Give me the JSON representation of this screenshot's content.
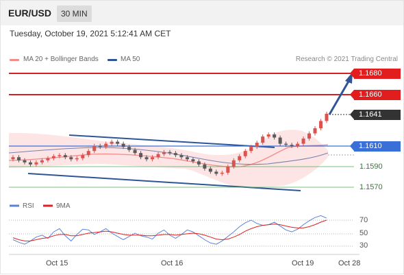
{
  "header": {
    "symbol": "EUR/USD",
    "timeframe": "30 MIN"
  },
  "datetime": "Tuesday, October 19, 2021 5:12:41 AM CET",
  "legend": {
    "ma20_label": "MA 20 + Bollinger Bands",
    "ma50_label": "MA 50",
    "source": "Research © 2021 Trading Central"
  },
  "levels": {
    "resistance2": "1.1680",
    "resistance1": "1.1660",
    "current": "1.1641",
    "pivot": "1.1610",
    "support1": "1.1590",
    "support2": "1.1570"
  },
  "rsi_legend": {
    "rsi_label": "RSI",
    "ma_label": "9MA"
  },
  "rsi_ticks": [
    "70",
    "50",
    "30"
  ],
  "x_labels": [
    "Oct 15",
    "Oct 16",
    "Oct 19",
    "Oct 28"
  ],
  "colors": {
    "resistance": "#d32020",
    "support": "#4caf50",
    "pivot": "#3a6fd8",
    "current": "#333333",
    "ma20": "#f48a8a",
    "ma50": "#2f5597",
    "bollinger": "#fde0e0",
    "arrow": "#2f5597",
    "candle_up": "#d9534f",
    "candle_down": "#5a5a5a",
    "rsi": "#5b82d8",
    "rsi_ma": "#e02020"
  },
  "chart_data": {
    "type": "line",
    "title": "EUR/USD 30 MIN",
    "x_tick_labels": [
      "Oct 15",
      "Oct 16",
      "Oct 19",
      "Oct 28"
    ],
    "price": [
      1.1599,
      1.1596,
      1.1594,
      1.1592,
      1.1594,
      1.1596,
      1.1598,
      1.16,
      1.1601,
      1.1599,
      1.1597,
      1.1598,
      1.1601,
      1.1605,
      1.161,
      1.1609,
      1.1612,
      1.1614,
      1.1612,
      1.1609,
      1.1606,
      1.1603,
      1.1599,
      1.1597,
      1.1599,
      1.1602,
      1.1604,
      1.1603,
      1.1601,
      1.1599,
      1.1597,
      1.1595,
      1.1592,
      1.1588,
      1.1585,
      1.1583,
      1.1584,
      1.159,
      1.1596,
      1.16,
      1.1605,
      1.1609,
      1.1613,
      1.1619,
      1.1621,
      1.1618,
      1.1612,
      1.1611,
      1.161,
      1.1612,
      1.1617,
      1.1622,
      1.1627,
      1.1634,
      1.1641
    ],
    "horizontal_levels": [
      {
        "name": "resistance",
        "value": 1.168
      },
      {
        "name": "resistance",
        "value": 1.166
      },
      {
        "name": "last",
        "value": 1.1641
      },
      {
        "name": "pivot",
        "value": 1.161
      },
      {
        "name": "support",
        "value": 1.159
      },
      {
        "name": "support",
        "value": 1.157
      }
    ],
    "rsi": {
      "ticks": [
        70,
        50,
        30
      ],
      "rsi": [
        40,
        36,
        33,
        38,
        44,
        47,
        42,
        52,
        57,
        46,
        38,
        48,
        56,
        55,
        48,
        52,
        57,
        50,
        45,
        40,
        45,
        50,
        46,
        44,
        41,
        50,
        55,
        47,
        42,
        48,
        55,
        52,
        46,
        40,
        35,
        33,
        38,
        45,
        52,
        60,
        66,
        70,
        65,
        62,
        63,
        67,
        61,
        55,
        52,
        56,
        63,
        69,
        74,
        77,
        73
      ],
      "ma9": [
        43,
        40,
        38,
        38,
        40,
        42,
        43,
        46,
        48,
        48,
        46,
        46,
        48,
        50,
        51,
        52,
        53,
        52,
        50,
        48,
        47,
        47,
        47,
        46,
        46,
        47,
        48,
        48,
        47,
        48,
        49,
        50,
        49,
        47,
        44,
        41,
        40,
        41,
        44,
        48,
        53,
        57,
        60,
        62,
        63,
        64,
        63,
        61,
        59,
        58,
        58,
        60,
        63,
        67,
        70
      ]
    }
  }
}
